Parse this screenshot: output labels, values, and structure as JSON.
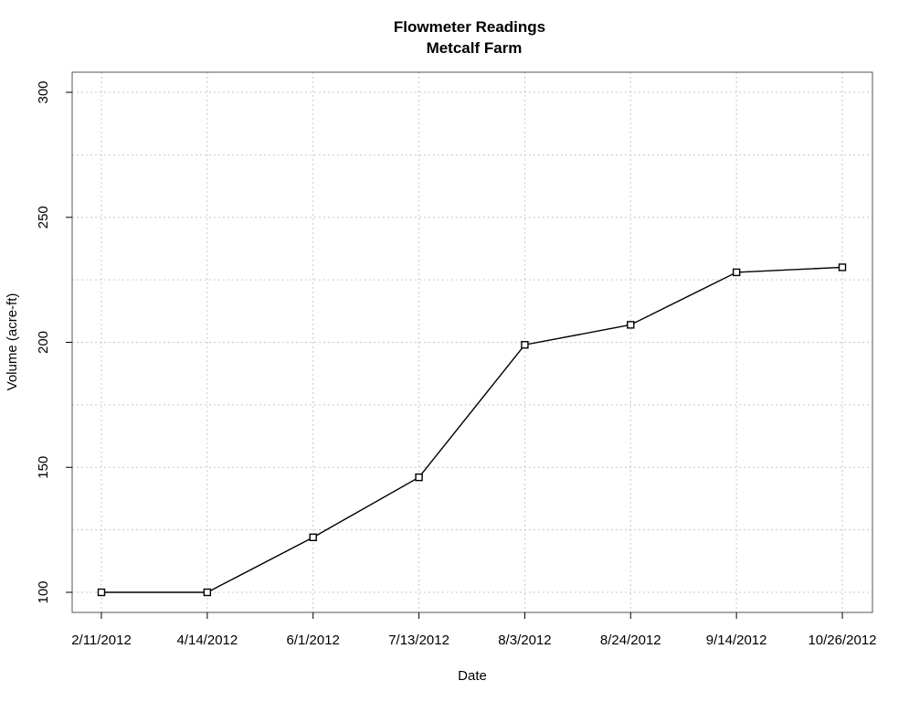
{
  "chart_data": {
    "type": "line",
    "title": "Flowmeter Readings",
    "subtitle": "Metcalf Farm",
    "xlabel": "Date",
    "ylabel": "Volume (acre-ft)",
    "categories": [
      "2/11/2012",
      "4/14/2012",
      "6/1/2012",
      "7/13/2012",
      "8/3/2012",
      "8/24/2012",
      "9/14/2012",
      "10/26/2012"
    ],
    "values": [
      100,
      100,
      122,
      146,
      199,
      207,
      228,
      230
    ],
    "ylim": [
      100,
      300
    ],
    "yticks": [
      100,
      150,
      200,
      250,
      300
    ],
    "grid": true,
    "marker": "open-square",
    "colors": {
      "line": "#000000",
      "grid": "#c8c8c8",
      "frame": "#555555"
    }
  }
}
